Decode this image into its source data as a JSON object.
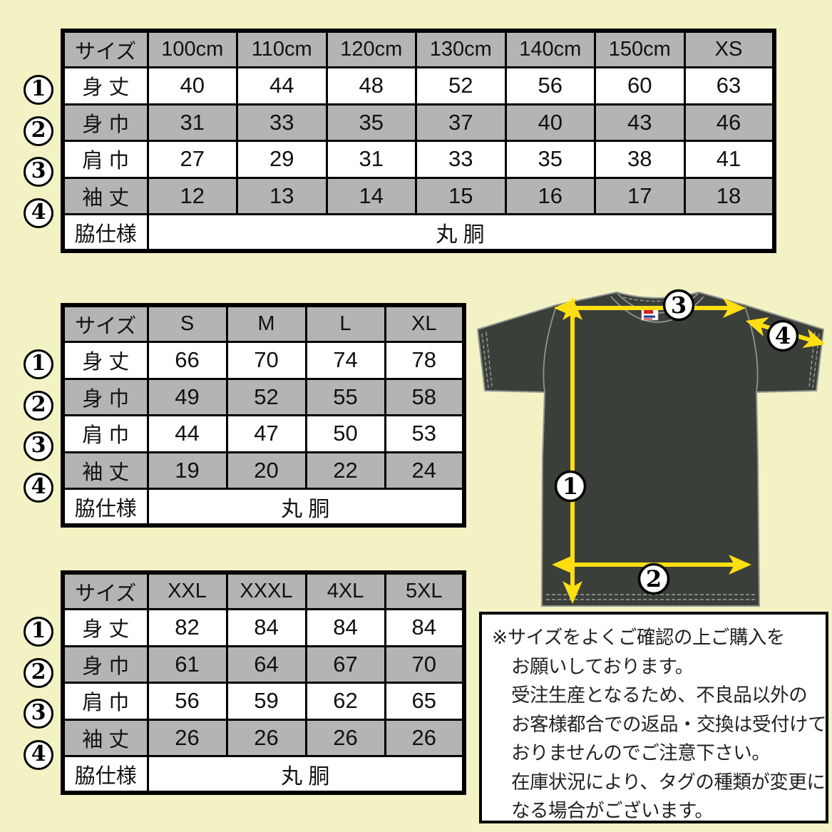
{
  "tables": [
    {
      "name": "kids-to-xs",
      "header": [
        "サイズ",
        "100cm",
        "110cm",
        "120cm",
        "130cm",
        "140cm",
        "150cm",
        "XS"
      ],
      "rows": [
        {
          "marker": "1",
          "label": "身 丈",
          "values": [
            "40",
            "44",
            "48",
            "52",
            "56",
            "60",
            "63"
          ]
        },
        {
          "marker": "2",
          "label": "身 巾",
          "values": [
            "31",
            "33",
            "35",
            "37",
            "40",
            "43",
            "46"
          ]
        },
        {
          "marker": "3",
          "label": "肩 巾",
          "values": [
            "27",
            "29",
            "31",
            "33",
            "35",
            "38",
            "41"
          ]
        },
        {
          "marker": "4",
          "label": "袖 丈",
          "values": [
            "12",
            "13",
            "14",
            "15",
            "16",
            "17",
            "18"
          ]
        }
      ],
      "footer": {
        "label": "脇仕様",
        "value": "丸 胴"
      }
    },
    {
      "name": "s-to-xl",
      "header": [
        "サイズ",
        "S",
        "M",
        "L",
        "XL"
      ],
      "rows": [
        {
          "marker": "1",
          "label": "身 丈",
          "values": [
            "66",
            "70",
            "74",
            "78"
          ]
        },
        {
          "marker": "2",
          "label": "身 巾",
          "values": [
            "49",
            "52",
            "55",
            "58"
          ]
        },
        {
          "marker": "3",
          "label": "肩 巾",
          "values": [
            "44",
            "47",
            "50",
            "53"
          ]
        },
        {
          "marker": "4",
          "label": "袖 丈",
          "values": [
            "19",
            "20",
            "22",
            "24"
          ]
        }
      ],
      "footer": {
        "label": "脇仕様",
        "value": "丸 胴"
      }
    },
    {
      "name": "xxl-to-5xl",
      "header": [
        "サイズ",
        "XXL",
        "XXXL",
        "4XL",
        "5XL"
      ],
      "rows": [
        {
          "marker": "1",
          "label": "身 丈",
          "values": [
            "82",
            "84",
            "84",
            "84"
          ]
        },
        {
          "marker": "2",
          "label": "身 巾",
          "values": [
            "61",
            "64",
            "67",
            "70"
          ]
        },
        {
          "marker": "3",
          "label": "肩 巾",
          "values": [
            "56",
            "59",
            "62",
            "65"
          ]
        },
        {
          "marker": "4",
          "label": "袖 丈",
          "values": [
            "26",
            "26",
            "26",
            "26"
          ]
        }
      ],
      "footer": {
        "label": "脇仕様",
        "value": "丸 胴"
      }
    }
  ],
  "diagram": {
    "marker_labels": [
      "1",
      "2",
      "3",
      "4"
    ]
  },
  "note": {
    "lines": [
      "※サイズをよくご確認の上ご購入を",
      "お願いしております。",
      "受注生産となるため、不良品以外の",
      "お客様都合での返品・交換は受付けて",
      "おりませんのでご注意下さい。",
      "在庫状況により、タグの種類が変更に",
      "なる場合がございます。"
    ]
  },
  "colors": {
    "background": "#F2F2C4",
    "table_header_gray": "#B4B4B4",
    "shirt_body": "#3A3F3A",
    "arrow_yellow": "#FFDF12",
    "tag_red": "#CC2222",
    "tag_blue": "#224488"
  }
}
